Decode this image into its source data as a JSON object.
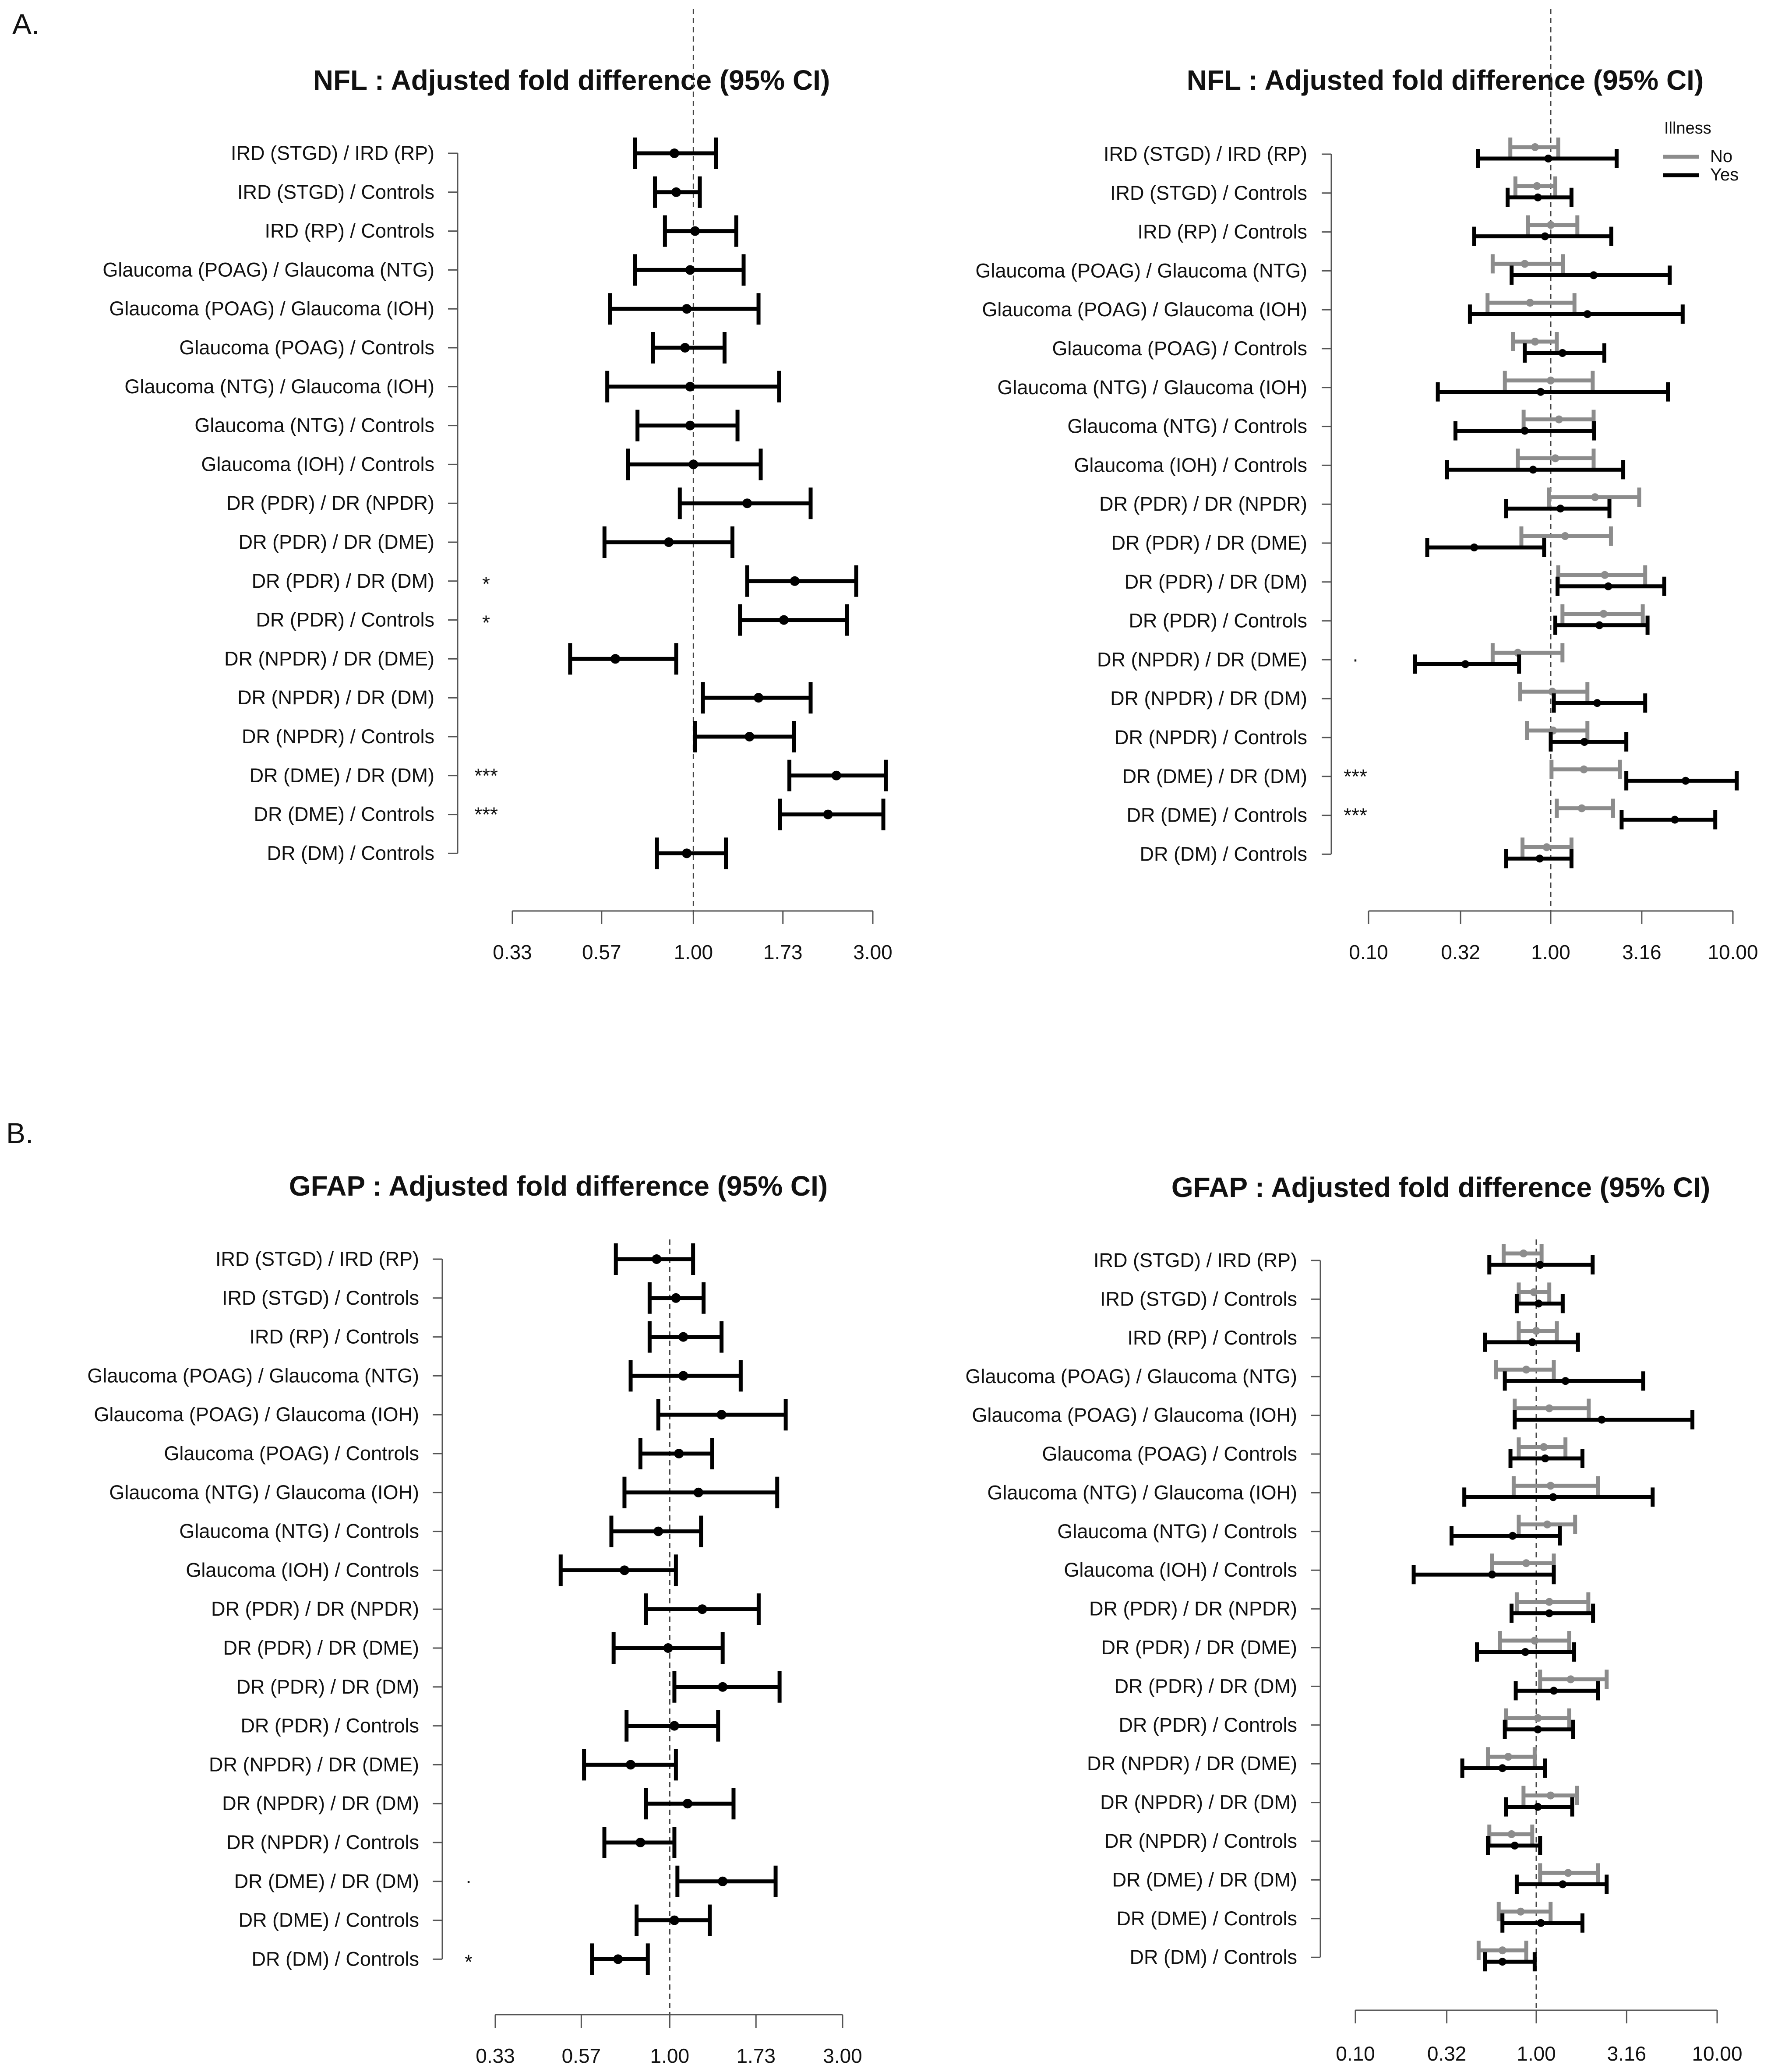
{
  "figure": {
    "panel_labels": [
      "A.",
      "B."
    ],
    "legend": {
      "title": "Illness",
      "items": [
        {
          "label": "No",
          "color": "#8c8c8c"
        },
        {
          "label": "Yes",
          "color": "#000000"
        }
      ]
    }
  },
  "chart_data": [
    {
      "id": "A-left",
      "type": "forest",
      "title": "NFL : Adjusted fold difference (95% CI)",
      "xscale": "log",
      "xlim": [
        0.33,
        3.0
      ],
      "xticks": [
        0.33,
        0.57,
        1.0,
        1.73,
        3.0
      ],
      "xtick_labels": [
        "0.33",
        "0.57",
        "1.00",
        "1.73",
        "3.00"
      ],
      "reference": 1.0,
      "rows": [
        {
          "label": "IRD (STGD) / IRD (RP)",
          "sig": "",
          "est": 0.89,
          "lo": 0.7,
          "hi": 1.15
        },
        {
          "label": "IRD (STGD) / Controls",
          "sig": "",
          "est": 0.9,
          "lo": 0.79,
          "hi": 1.04
        },
        {
          "label": "IRD (RP) / Controls",
          "sig": "",
          "est": 1.01,
          "lo": 0.84,
          "hi": 1.3
        },
        {
          "label": "Glaucoma (POAG) / Glaucoma (NTG)",
          "sig": "",
          "est": 0.98,
          "lo": 0.7,
          "hi": 1.36
        },
        {
          "label": "Glaucoma (POAG) / Glaucoma (IOH)",
          "sig": "",
          "est": 0.96,
          "lo": 0.6,
          "hi": 1.49
        },
        {
          "label": "Glaucoma (POAG) / Controls",
          "sig": "",
          "est": 0.95,
          "lo": 0.78,
          "hi": 1.21
        },
        {
          "label": "Glaucoma (NTG) / Glaucoma (IOH)",
          "sig": "",
          "est": 0.98,
          "lo": 0.59,
          "hi": 1.69
        },
        {
          "label": "Glaucoma (NTG) / Controls",
          "sig": "",
          "est": 0.98,
          "lo": 0.71,
          "hi": 1.31
        },
        {
          "label": "Glaucoma (IOH) / Controls",
          "sig": "",
          "est": 1.0,
          "lo": 0.67,
          "hi": 1.51
        },
        {
          "label": "DR (PDR) / DR (NPDR)",
          "sig": "",
          "est": 1.39,
          "lo": 0.92,
          "hi": 2.05
        },
        {
          "label": "DR (PDR) / DR (DME)",
          "sig": "",
          "est": 0.86,
          "lo": 0.58,
          "hi": 1.27
        },
        {
          "label": "DR (PDR) / DR (DM)",
          "sig": "*",
          "est": 1.86,
          "lo": 1.39,
          "hi": 2.71
        },
        {
          "label": "DR (PDR) / Controls",
          "sig": "*",
          "est": 1.74,
          "lo": 1.33,
          "hi": 2.56
        },
        {
          "label": "DR (NPDR) / DR (DME)",
          "sig": "",
          "est": 0.62,
          "lo": 0.47,
          "hi": 0.9
        },
        {
          "label": "DR (NPDR) / DR (DM)",
          "sig": "",
          "est": 1.49,
          "lo": 1.06,
          "hi": 2.05
        },
        {
          "label": "DR (NPDR) / Controls",
          "sig": "",
          "est": 1.41,
          "lo": 1.01,
          "hi": 1.85
        },
        {
          "label": "DR (DME) / DR (DM)",
          "sig": "***",
          "est": 2.4,
          "lo": 1.8,
          "hi": 3.25
        },
        {
          "label": "DR (DME) / Controls",
          "sig": "***",
          "est": 2.28,
          "lo": 1.7,
          "hi": 3.2
        },
        {
          "label": "DR (DM) / Controls",
          "sig": "",
          "est": 0.96,
          "lo": 0.8,
          "hi": 1.22
        }
      ]
    },
    {
      "id": "A-right",
      "type": "forest",
      "title": "NFL : Adjusted fold difference (95% CI)",
      "xscale": "log",
      "xlim": [
        0.1,
        10.0
      ],
      "xticks": [
        0.1,
        0.32,
        1.0,
        3.16,
        10.0
      ],
      "xtick_labels": [
        "0.10",
        "0.32",
        "1.00",
        "3.16",
        "10.00"
      ],
      "reference": 1.0,
      "legend": true,
      "rows": [
        {
          "label": "IRD (STGD) / IRD (RP)",
          "sig": "",
          "no": [
            0.82,
            0.6,
            1.1
          ],
          "yes": [
            0.97,
            0.4,
            2.3
          ]
        },
        {
          "label": "IRD (STGD) / Controls",
          "sig": "",
          "no": [
            0.84,
            0.64,
            1.06
          ],
          "yes": [
            0.85,
            0.58,
            1.3
          ]
        },
        {
          "label": "IRD (RP) / Controls",
          "sig": "",
          "no": [
            1.0,
            0.75,
            1.4
          ],
          "yes": [
            0.93,
            0.38,
            2.15
          ]
        },
        {
          "label": "Glaucoma (POAG) / Glaucoma (NTG)",
          "sig": "",
          "no": [
            0.72,
            0.48,
            1.17
          ],
          "yes": [
            1.72,
            0.61,
            4.5
          ]
        },
        {
          "label": "Glaucoma (POAG) / Glaucoma (IOH)",
          "sig": "",
          "no": [
            0.77,
            0.45,
            1.35
          ],
          "yes": [
            1.59,
            0.36,
            5.3
          ]
        },
        {
          "label": "Glaucoma (POAG) / Controls",
          "sig": "",
          "no": [
            0.82,
            0.62,
            1.08
          ],
          "yes": [
            1.16,
            0.72,
            1.97
          ]
        },
        {
          "label": "Glaucoma (NTG) / Glaucoma (IOH)",
          "sig": "",
          "no": [
            1.0,
            0.56,
            1.7
          ],
          "yes": [
            0.88,
            0.24,
            4.4
          ]
        },
        {
          "label": "Glaucoma (NTG) / Controls",
          "sig": "",
          "no": [
            1.11,
            0.71,
            1.72
          ],
          "yes": [
            0.72,
            0.3,
            1.73
          ]
        },
        {
          "label": "Glaucoma (IOH) / Controls",
          "sig": "",
          "no": [
            1.06,
            0.66,
            1.72
          ],
          "yes": [
            0.8,
            0.27,
            2.5
          ]
        },
        {
          "label": "DR (PDR) / DR (NPDR)",
          "sig": "",
          "no": [
            1.75,
            0.98,
            3.06
          ],
          "yes": [
            1.13,
            0.57,
            2.1
          ]
        },
        {
          "label": "DR (PDR) / DR (DME)",
          "sig": "",
          "no": [
            1.2,
            0.69,
            2.14
          ],
          "yes": [
            0.38,
            0.21,
            0.92
          ]
        },
        {
          "label": "DR (PDR) / DR (DM)",
          "sig": "",
          "no": [
            1.98,
            1.1,
            3.3
          ],
          "yes": [
            2.07,
            1.09,
            4.2
          ]
        },
        {
          "label": "DR (PDR) / Controls",
          "sig": "",
          "no": [
            1.95,
            1.16,
            3.2
          ],
          "yes": [
            1.85,
            1.06,
            3.4
          ]
        },
        {
          "label": "DR (NPDR) / DR (DME)",
          "sig": ".",
          "no": [
            0.66,
            0.48,
            1.16
          ],
          "yes": [
            0.34,
            0.18,
            0.67
          ]
        },
        {
          "label": "DR (NPDR) / DR (DM)",
          "sig": "",
          "no": [
            1.02,
            0.68,
            1.59
          ],
          "yes": [
            1.8,
            1.04,
            3.3
          ]
        },
        {
          "label": "DR (NPDR) / Controls",
          "sig": "",
          "no": [
            1.03,
            0.74,
            1.59
          ],
          "yes": [
            1.53,
            1.0,
            2.6
          ]
        },
        {
          "label": "DR (DME) / DR (DM)",
          "sig": "***",
          "no": [
            1.52,
            1.01,
            2.4
          ],
          "yes": [
            5.5,
            2.6,
            10.5
          ]
        },
        {
          "label": "DR (DME) / Controls",
          "sig": "***",
          "no": [
            1.48,
            1.08,
            2.2
          ],
          "yes": [
            4.8,
            2.45,
            8.0
          ]
        },
        {
          "label": "DR (DM) / Controls",
          "sig": "",
          "no": [
            0.95,
            0.7,
            1.3
          ],
          "yes": [
            0.87,
            0.57,
            1.3
          ]
        }
      ]
    },
    {
      "id": "B-left",
      "type": "forest",
      "title": "GFAP : Adjusted fold difference (95% CI)",
      "xscale": "log",
      "xlim": [
        0.33,
        3.0
      ],
      "xticks": [
        0.33,
        0.57,
        1.0,
        1.73,
        3.0
      ],
      "xtick_labels": [
        "0.33",
        "0.57",
        "1.00",
        "1.73",
        "3.00"
      ],
      "reference": 1.0,
      "rows": [
        {
          "label": "IRD (STGD) / IRD (RP)",
          "sig": "",
          "est": 0.92,
          "lo": 0.71,
          "hi": 1.16
        },
        {
          "label": "IRD (STGD) / Controls",
          "sig": "",
          "est": 1.04,
          "lo": 0.88,
          "hi": 1.24
        },
        {
          "label": "IRD (RP) / Controls",
          "sig": "",
          "est": 1.09,
          "lo": 0.88,
          "hi": 1.39
        },
        {
          "label": "Glaucoma (POAG) / Glaucoma (NTG)",
          "sig": "",
          "est": 1.09,
          "lo": 0.78,
          "hi": 1.57
        },
        {
          "label": "Glaucoma (POAG) / Glaucoma (IOH)",
          "sig": "",
          "est": 1.39,
          "lo": 0.93,
          "hi": 2.09
        },
        {
          "label": "Glaucoma (POAG) / Controls",
          "sig": "",
          "est": 1.06,
          "lo": 0.83,
          "hi": 1.31
        },
        {
          "label": "Glaucoma (NTG) / Glaucoma (IOH)",
          "sig": "",
          "est": 1.2,
          "lo": 0.75,
          "hi": 1.98
        },
        {
          "label": "Glaucoma (NTG) / Controls",
          "sig": "",
          "est": 0.93,
          "lo": 0.69,
          "hi": 1.22
        },
        {
          "label": "Glaucoma (IOH) / Controls",
          "sig": "",
          "est": 0.75,
          "lo": 0.5,
          "hi": 1.04
        },
        {
          "label": "DR (PDR) / DR (NPDR)",
          "sig": "",
          "est": 1.23,
          "lo": 0.86,
          "hi": 1.76
        },
        {
          "label": "DR (PDR) / DR (DME)",
          "sig": "",
          "est": 0.99,
          "lo": 0.7,
          "hi": 1.4
        },
        {
          "label": "DR (PDR) / DR (DM)",
          "sig": "",
          "est": 1.4,
          "lo": 1.03,
          "hi": 2.01
        },
        {
          "label": "DR (PDR) / Controls",
          "sig": "",
          "est": 1.03,
          "lo": 0.76,
          "hi": 1.36
        },
        {
          "label": "DR (NPDR) / DR (DME)",
          "sig": "",
          "est": 0.78,
          "lo": 0.58,
          "hi": 1.04
        },
        {
          "label": "DR (NPDR) / DR (DM)",
          "sig": "",
          "est": 1.12,
          "lo": 0.86,
          "hi": 1.5
        },
        {
          "label": "DR (NPDR) / Controls",
          "sig": "",
          "est": 0.83,
          "lo": 0.66,
          "hi": 1.03
        },
        {
          "label": "DR (DME) / DR (DM)",
          "sig": ".",
          "est": 1.4,
          "lo": 1.05,
          "hi": 1.96
        },
        {
          "label": "DR (DME) / Controls",
          "sig": "",
          "est": 1.03,
          "lo": 0.81,
          "hi": 1.29
        },
        {
          "label": "DR (DM) / Controls",
          "sig": "*",
          "est": 0.72,
          "lo": 0.61,
          "hi": 0.87
        }
      ]
    },
    {
      "id": "B-right",
      "type": "forest",
      "title": "GFAP : Adjusted fold difference (95% CI)",
      "xscale": "log",
      "xlim": [
        0.1,
        10.0
      ],
      "xticks": [
        0.1,
        0.32,
        1.0,
        3.16,
        10.0
      ],
      "xtick_labels": [
        "0.10",
        "0.32",
        "1.00",
        "3.16",
        "10.00"
      ],
      "reference": 1.0,
      "rows": [
        {
          "label": "IRD (STGD) / IRD (RP)",
          "sig": "",
          "no": [
            0.85,
            0.66,
            1.07
          ],
          "yes": [
            1.05,
            0.55,
            2.05
          ]
        },
        {
          "label": "IRD (STGD) / Controls",
          "sig": "",
          "no": [
            0.97,
            0.8,
            1.18
          ],
          "yes": [
            1.03,
            0.78,
            1.4
          ]
        },
        {
          "label": "IRD (RP) / Controls",
          "sig": "",
          "no": [
            1.0,
            0.8,
            1.3
          ],
          "yes": [
            0.95,
            0.52,
            1.7
          ]
        },
        {
          "label": "Glaucoma (POAG) / Glaucoma (NTG)",
          "sig": "",
          "no": [
            0.88,
            0.6,
            1.25
          ],
          "yes": [
            1.45,
            0.67,
            3.9
          ]
        },
        {
          "label": "Glaucoma (POAG) / Glaucoma (IOH)",
          "sig": "",
          "no": [
            1.18,
            0.76,
            1.95
          ],
          "yes": [
            2.3,
            0.76,
            7.3
          ]
        },
        {
          "label": "Glaucoma (POAG) / Controls",
          "sig": "",
          "no": [
            1.1,
            0.8,
            1.45
          ],
          "yes": [
            1.12,
            0.72,
            1.8
          ]
        },
        {
          "label": "Glaucoma (NTG) / Glaucoma (IOH)",
          "sig": "",
          "no": [
            1.2,
            0.75,
            2.2
          ],
          "yes": [
            1.24,
            0.4,
            4.4
          ]
        },
        {
          "label": "Glaucoma (NTG) / Controls",
          "sig": "",
          "no": [
            1.15,
            0.8,
            1.64
          ],
          "yes": [
            0.74,
            0.34,
            1.35
          ]
        },
        {
          "label": "Glaucoma (IOH) / Controls",
          "sig": "",
          "no": [
            0.88,
            0.57,
            1.25
          ],
          "yes": [
            0.57,
            0.21,
            1.25
          ]
        },
        {
          "label": "DR (PDR) / DR (NPDR)",
          "sig": "",
          "no": [
            1.18,
            0.78,
            1.94
          ],
          "yes": [
            1.18,
            0.73,
            2.06
          ]
        },
        {
          "label": "DR (PDR) / DR (DME)",
          "sig": "",
          "no": [
            0.98,
            0.63,
            1.52
          ],
          "yes": [
            0.87,
            0.47,
            1.62
          ]
        },
        {
          "label": "DR (PDR) / DR (DM)",
          "sig": "",
          "no": [
            1.55,
            1.05,
            2.45
          ],
          "yes": [
            1.25,
            0.77,
            2.2
          ]
        },
        {
          "label": "DR (PDR) / Controls",
          "sig": "",
          "no": [
            1.02,
            0.68,
            1.52
          ],
          "yes": [
            1.02,
            0.67,
            1.6
          ]
        },
        {
          "label": "DR (NPDR) / DR (DME)",
          "sig": "",
          "no": [
            0.7,
            0.54,
            0.98
          ],
          "yes": [
            0.65,
            0.39,
            1.12
          ]
        },
        {
          "label": "DR (NPDR) / DR (DM)",
          "sig": "",
          "no": [
            1.2,
            0.85,
            1.68
          ],
          "yes": [
            1.02,
            0.68,
            1.58
          ]
        },
        {
          "label": "DR (NPDR) / Controls",
          "sig": "",
          "no": [
            0.73,
            0.55,
            0.95
          ],
          "yes": [
            0.76,
            0.54,
            1.05
          ]
        },
        {
          "label": "DR (DME) / DR (DM)",
          "sig": "",
          "no": [
            1.5,
            1.05,
            2.2
          ],
          "yes": [
            1.4,
            0.78,
            2.45
          ]
        },
        {
          "label": "DR (DME) / Controls",
          "sig": "",
          "no": [
            0.82,
            0.62,
            1.2
          ],
          "yes": [
            1.06,
            0.65,
            1.8
          ]
        },
        {
          "label": "DR (DM) / Controls",
          "sig": "",
          "no": [
            0.65,
            0.48,
            0.88
          ],
          "yes": [
            0.65,
            0.52,
            0.98
          ]
        }
      ]
    }
  ]
}
